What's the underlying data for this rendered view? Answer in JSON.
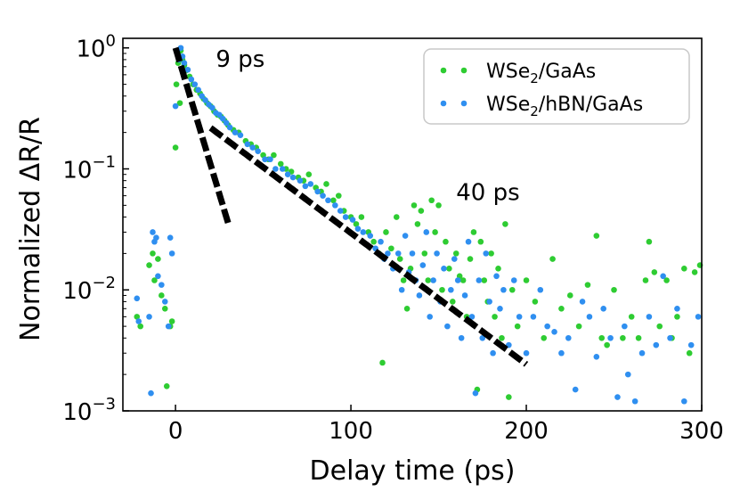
{
  "chart_data": {
    "type": "scatter",
    "xlabel": "Delay time (ps)",
    "ylabel": "Normalized ΔR/R",
    "xlim": [
      -30,
      300
    ],
    "ylim": [
      0.001,
      1.2
    ],
    "yscale": "log",
    "grid": false,
    "legend_position": "top-right",
    "x_ticks": [
      0,
      100,
      200,
      300
    ],
    "x_tick_labels": [
      "0",
      "100",
      "200",
      "300"
    ],
    "y_ticks": [
      0.001,
      0.01,
      0.1,
      1
    ],
    "y_tick_labels": [
      {
        "base": "10",
        "exp": "−3"
      },
      {
        "base": "10",
        "exp": "−2"
      },
      {
        "base": "10",
        "exp": "−1"
      },
      {
        "base": "10",
        "exp": "0"
      }
    ],
    "annotations": [
      {
        "text": "9 ps",
        "x": 23,
        "y": 0.7
      },
      {
        "text": "40 ps",
        "x": 160,
        "y": 0.055
      }
    ],
    "series": [
      {
        "name": "WSe2/GaAs",
        "label_parts": {
          "pre": "WSe",
          "sub": "2",
          "post": "/GaAs"
        },
        "color": "#2ecc32",
        "points": [
          [
            -22,
            0.006
          ],
          [
            -20,
            0.005
          ],
          [
            -15,
            0.016
          ],
          [
            -13,
            0.02
          ],
          [
            -12,
            0.012
          ],
          [
            -10,
            0.018
          ],
          [
            -8,
            0.009
          ],
          [
            -6,
            0.007
          ],
          [
            -5,
            0.0016
          ],
          [
            -3,
            0.005
          ],
          [
            -2,
            0.0055
          ],
          [
            0,
            0.15
          ],
          [
            0.5,
            0.5
          ],
          [
            1,
            0.9
          ],
          [
            1.5,
            0.75
          ],
          [
            2,
            0.85
          ],
          [
            2.5,
            0.35
          ],
          [
            3,
            0.95
          ],
          [
            4,
            0.8
          ],
          [
            5,
            0.72
          ],
          [
            6,
            0.65
          ],
          [
            8,
            0.58
          ],
          [
            10,
            0.5
          ],
          [
            12,
            0.45
          ],
          [
            14,
            0.42
          ],
          [
            16,
            0.38
          ],
          [
            18,
            0.35
          ],
          [
            20,
            0.33
          ],
          [
            22,
            0.3
          ],
          [
            24,
            0.28
          ],
          [
            26,
            0.27
          ],
          [
            28,
            0.25
          ],
          [
            30,
            0.23
          ],
          [
            33,
            0.21
          ],
          [
            36,
            0.2
          ],
          [
            40,
            0.17
          ],
          [
            43,
            0.16
          ],
          [
            46,
            0.15
          ],
          [
            50,
            0.13
          ],
          [
            53,
            0.12
          ],
          [
            56,
            0.13
          ],
          [
            60,
            0.11
          ],
          [
            63,
            0.1
          ],
          [
            66,
            0.095
          ],
          [
            70,
            0.085
          ],
          [
            73,
            0.08
          ],
          [
            76,
            0.09
          ],
          [
            80,
            0.07
          ],
          [
            83,
            0.065
          ],
          [
            86,
            0.075
          ],
          [
            90,
            0.055
          ],
          [
            93,
            0.06
          ],
          [
            96,
            0.045
          ],
          [
            100,
            0.04
          ],
          [
            103,
            0.035
          ],
          [
            106,
            0.04
          ],
          [
            110,
            0.03
          ],
          [
            113,
            0.025
          ],
          [
            116,
            0.02
          ],
          [
            118,
            0.0025
          ],
          [
            120,
            0.03
          ],
          [
            123,
            0.022
          ],
          [
            126,
            0.04
          ],
          [
            128,
            0.018
          ],
          [
            130,
            0.012
          ],
          [
            132,
            0.007
          ],
          [
            134,
            0.015
          ],
          [
            136,
            0.05
          ],
          [
            138,
            0.035
          ],
          [
            140,
            0.045
          ],
          [
            142,
            0.02
          ],
          [
            144,
            0.012
          ],
          [
            146,
            0.055
          ],
          [
            148,
            0.03
          ],
          [
            150,
            0.05
          ],
          [
            152,
            0.01
          ],
          [
            154,
            0.025
          ],
          [
            156,
            0.015
          ],
          [
            158,
            0.008
          ],
          [
            160,
            0.02
          ],
          [
            162,
            0.013
          ],
          [
            164,
            0.012
          ],
          [
            166,
            0.006
          ],
          [
            168,
            0.018
          ],
          [
            170,
            0.03
          ],
          [
            172,
            0.0015
          ],
          [
            174,
            0.025
          ],
          [
            176,
            0.012
          ],
          [
            178,
            0.008
          ],
          [
            180,
            0.02
          ],
          [
            182,
            0.006
          ],
          [
            184,
            0.015
          ],
          [
            186,
            0.004
          ],
          [
            188,
            0.035
          ],
          [
            190,
            0.0013
          ],
          [
            192,
            0.01
          ],
          [
            195,
            0.005
          ],
          [
            200,
            0.012
          ],
          [
            205,
            0.008
          ],
          [
            210,
            0.004
          ],
          [
            215,
            0.018
          ],
          [
            220,
            0.007
          ],
          [
            225,
            0.009
          ],
          [
            230,
            0.005
          ],
          [
            235,
            0.011
          ],
          [
            240,
            0.028
          ],
          [
            243,
            0.004
          ],
          [
            246,
            0.0035
          ],
          [
            250,
            0.01
          ],
          [
            255,
            0.004
          ],
          [
            260,
            0.006
          ],
          [
            264,
            0.004
          ],
          [
            268,
            0.012
          ],
          [
            270,
            0.025
          ],
          [
            273,
            0.014
          ],
          [
            276,
            0.005
          ],
          [
            280,
            0.012
          ],
          [
            283,
            0.004
          ],
          [
            286,
            0.006
          ],
          [
            290,
            0.015
          ],
          [
            293,
            0.003
          ],
          [
            296,
            0.014
          ],
          [
            299,
            0.016
          ]
        ]
      },
      {
        "name": "WSe2/hBN/GaAs",
        "label_parts": {
          "pre": "WSe",
          "sub": "2",
          "post": "/hBN/GaAs"
        },
        "color": "#2f8ff0",
        "points": [
          [
            -22,
            0.0085
          ],
          [
            -21,
            0.0055
          ],
          [
            -15,
            0.006
          ],
          [
            -14,
            0.0014
          ],
          [
            -13,
            0.03
          ],
          [
            -12,
            0.025
          ],
          [
            -11,
            0.027
          ],
          [
            -10,
            0.013
          ],
          [
            -8,
            0.011
          ],
          [
            -6,
            0.008
          ],
          [
            -4,
            0.005
          ],
          [
            -3,
            0.027
          ],
          [
            -2,
            0.02
          ],
          [
            0,
            0.33
          ],
          [
            1,
            0.95
          ],
          [
            2,
            0.8
          ],
          [
            3,
            1.0
          ],
          [
            4,
            0.85
          ],
          [
            5,
            0.75
          ],
          [
            7,
            0.66
          ],
          [
            9,
            0.55
          ],
          [
            11,
            0.5
          ],
          [
            13,
            0.45
          ],
          [
            15,
            0.4
          ],
          [
            17,
            0.37
          ],
          [
            19,
            0.34
          ],
          [
            21,
            0.32
          ],
          [
            23,
            0.29
          ],
          [
            25,
            0.28
          ],
          [
            27,
            0.26
          ],
          [
            29,
            0.24
          ],
          [
            31,
            0.22
          ],
          [
            34,
            0.2
          ],
          [
            37,
            0.19
          ],
          [
            41,
            0.16
          ],
          [
            44,
            0.15
          ],
          [
            47,
            0.14
          ],
          [
            51,
            0.12
          ],
          [
            54,
            0.12
          ],
          [
            57,
            0.1
          ],
          [
            61,
            0.1
          ],
          [
            64,
            0.09
          ],
          [
            67,
            0.085
          ],
          [
            71,
            0.08
          ],
          [
            74,
            0.072
          ],
          [
            77,
            0.075
          ],
          [
            81,
            0.065
          ],
          [
            84,
            0.06
          ],
          [
            87,
            0.055
          ],
          [
            91,
            0.05
          ],
          [
            94,
            0.045
          ],
          [
            97,
            0.04
          ],
          [
            101,
            0.038
          ],
          [
            104,
            0.032
          ],
          [
            107,
            0.03
          ],
          [
            111,
            0.028
          ],
          [
            114,
            0.022
          ],
          [
            117,
            0.025
          ],
          [
            119,
            0.018
          ],
          [
            121,
            0.02
          ],
          [
            124,
            0.015
          ],
          [
            127,
            0.02
          ],
          [
            129,
            0.01
          ],
          [
            131,
            0.028
          ],
          [
            133,
            0.014
          ],
          [
            135,
            0.02
          ],
          [
            137,
            0.012
          ],
          [
            139,
            0.009
          ],
          [
            141,
            0.016
          ],
          [
            143,
            0.03
          ],
          [
            145,
            0.006
          ],
          [
            147,
            0.012
          ],
          [
            149,
            0.02
          ],
          [
            151,
            0.008
          ],
          [
            153,
            0.015
          ],
          [
            155,
            0.005
          ],
          [
            157,
            0.01
          ],
          [
            159,
            0.018
          ],
          [
            161,
            0.012
          ],
          [
            163,
            0.004
          ],
          [
            165,
            0.009
          ],
          [
            167,
            0.025
          ],
          [
            169,
            0.006
          ],
          [
            171,
            0.0014
          ],
          [
            173,
            0.012
          ],
          [
            175,
            0.004
          ],
          [
            177,
            0.02
          ],
          [
            179,
            0.008
          ],
          [
            181,
            0.003
          ],
          [
            183,
            0.013
          ],
          [
            185,
            0.007
          ],
          [
            187,
            0.01
          ],
          [
            190,
            0.0035
          ],
          [
            193,
            0.012
          ],
          [
            196,
            0.006
          ],
          [
            200,
            0.003
          ],
          [
            204,
            0.006
          ],
          [
            208,
            0.01
          ],
          [
            212,
            0.005
          ],
          [
            216,
            0.0045
          ],
          [
            220,
            0.003
          ],
          [
            224,
            0.004
          ],
          [
            228,
            0.0015
          ],
          [
            232,
            0.008
          ],
          [
            236,
            0.006
          ],
          [
            240,
            0.0028
          ],
          [
            244,
            0.007
          ],
          [
            248,
            0.004
          ],
          [
            252,
            0.0013
          ],
          [
            256,
            0.005
          ],
          [
            258,
            0.002
          ],
          [
            262,
            0.0012
          ],
          [
            266,
            0.003
          ],
          [
            270,
            0.006
          ],
          [
            274,
            0.0035
          ],
          [
            278,
            0.013
          ],
          [
            282,
            0.004
          ],
          [
            286,
            0.007
          ],
          [
            290,
            0.0012
          ],
          [
            294,
            0.0035
          ],
          [
            298,
            0.006
          ]
        ]
      }
    ],
    "fits": [
      {
        "label": "9 ps",
        "tau": 9,
        "amp": 1.0,
        "x_range": [
          0,
          30
        ],
        "style": "dashed",
        "color": "#000000"
      },
      {
        "label": "40 ps",
        "tau": 40,
        "amp": 0.36,
        "x_range": [
          20,
          200
        ],
        "style": "dashed",
        "color": "#000000"
      }
    ]
  }
}
